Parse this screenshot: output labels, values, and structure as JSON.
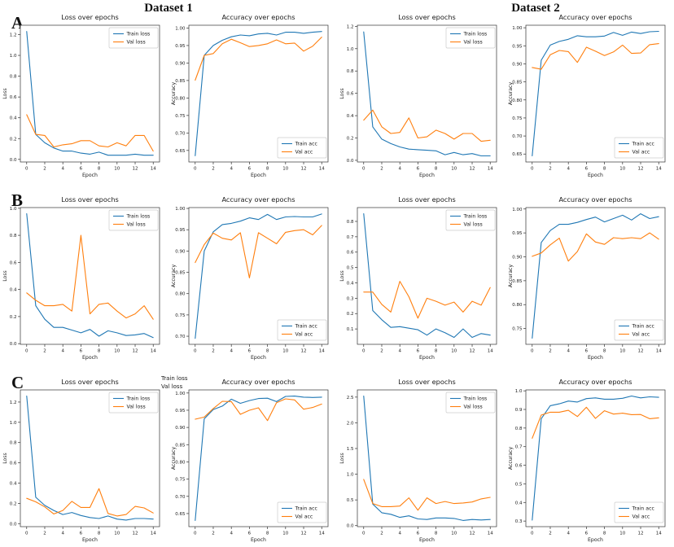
{
  "figure": {
    "col_headers": [
      "Dataset 1",
      "Dataset 2"
    ],
    "row_labels": [
      "A",
      "B",
      "C"
    ],
    "overflow_lines": [
      "Train loss",
      "Val loss"
    ]
  },
  "colors": {
    "train": "#1f77b4",
    "val": "#ff7f0e",
    "spine": "#333333",
    "text": "#1a1a1a",
    "legend_border": "#cccccc"
  },
  "chart_data": [
    {
      "id": "a1",
      "type": "line",
      "panel": "A",
      "dataset": "Dataset 1",
      "title": "Loss over epochs",
      "xlabel": "Epoch",
      "ylabel": "Loss",
      "x": [
        0,
        1,
        2,
        3,
        4,
        5,
        6,
        7,
        8,
        9,
        10,
        11,
        12,
        13,
        14
      ],
      "xticks": [
        0,
        2,
        4,
        6,
        8,
        10,
        12,
        14
      ],
      "xlim": [
        -0.7,
        14.7
      ],
      "yticks": [
        0.0,
        0.2,
        0.4,
        0.6,
        0.8,
        1.0,
        1.2
      ],
      "ytick_decimals": 1,
      "ylim": [
        -0.025,
        1.29
      ],
      "grid": false,
      "legend_loc": "upper right",
      "series": [
        {
          "name": "Train loss",
          "color_key": "train",
          "values": [
            1.23,
            0.24,
            0.16,
            0.11,
            0.08,
            0.08,
            0.06,
            0.05,
            0.07,
            0.04,
            0.04,
            0.04,
            0.05,
            0.04,
            0.04
          ]
        },
        {
          "name": "Val loss",
          "color_key": "val",
          "values": [
            0.43,
            0.24,
            0.23,
            0.12,
            0.14,
            0.15,
            0.18,
            0.18,
            0.13,
            0.12,
            0.16,
            0.13,
            0.23,
            0.23,
            0.08
          ]
        }
      ]
    },
    {
      "id": "a2",
      "type": "line",
      "panel": "A",
      "dataset": "Dataset 1",
      "title": "Accuracy over epochs",
      "xlabel": "Epoch",
      "ylabel": "Accuracy",
      "x": [
        0,
        1,
        2,
        3,
        4,
        5,
        6,
        7,
        8,
        9,
        10,
        11,
        12,
        13,
        14
      ],
      "xticks": [
        0,
        2,
        4,
        6,
        8,
        10,
        12,
        14
      ],
      "xlim": [
        -0.7,
        14.7
      ],
      "yticks": [
        0.65,
        0.7,
        0.75,
        0.8,
        0.85,
        0.9,
        0.95,
        1.0
      ],
      "ytick_decimals": 2,
      "ylim": [
        0.617,
        1.008
      ],
      "grid": false,
      "legend_loc": "lower right",
      "series": [
        {
          "name": "Train acc",
          "color_key": "train",
          "values": [
            0.635,
            0.922,
            0.95,
            0.965,
            0.975,
            0.98,
            0.978,
            0.983,
            0.985,
            0.98,
            0.988,
            0.988,
            0.985,
            0.988,
            0.99
          ]
        },
        {
          "name": "Val acc",
          "color_key": "val",
          "values": [
            0.851,
            0.922,
            0.927,
            0.955,
            0.968,
            0.958,
            0.947,
            0.95,
            0.955,
            0.966,
            0.955,
            0.957,
            0.934,
            0.948,
            0.974
          ]
        }
      ]
    },
    {
      "id": "a3",
      "type": "line",
      "panel": "A",
      "dataset": "Dataset 2",
      "title": "Loss over epochs",
      "xlabel": "Epoch",
      "ylabel": "Loss",
      "x": [
        0,
        1,
        2,
        3,
        4,
        5,
        6,
        7,
        8,
        9,
        10,
        11,
        12,
        13,
        14
      ],
      "xticks": [
        0,
        2,
        4,
        6,
        8,
        10,
        12,
        14
      ],
      "xlim": [
        -0.7,
        14.7
      ],
      "yticks": [
        0.0,
        0.2,
        0.4,
        0.6,
        0.8,
        1.0,
        1.2
      ],
      "ytick_decimals": 1,
      "ylim": [
        -0.015,
        1.21
      ],
      "grid": false,
      "legend_loc": "upper right",
      "series": [
        {
          "name": "Train loss",
          "color_key": "train",
          "values": [
            1.15,
            0.3,
            0.19,
            0.15,
            0.12,
            0.1,
            0.095,
            0.09,
            0.085,
            0.05,
            0.07,
            0.05,
            0.06,
            0.04,
            0.04
          ]
        },
        {
          "name": "Val loss",
          "color_key": "val",
          "values": [
            0.36,
            0.45,
            0.3,
            0.24,
            0.25,
            0.38,
            0.2,
            0.21,
            0.27,
            0.24,
            0.19,
            0.24,
            0.24,
            0.17,
            0.18
          ]
        }
      ]
    },
    {
      "id": "a4",
      "type": "line",
      "panel": "A",
      "dataset": "Dataset 2",
      "title": "Accuracy over epochs",
      "xlabel": "Epoch",
      "ylabel": "Accuracy",
      "x": [
        0,
        1,
        2,
        3,
        4,
        5,
        6,
        7,
        8,
        9,
        10,
        11,
        12,
        13,
        14
      ],
      "xticks": [
        0,
        2,
        4,
        6,
        8,
        10,
        12,
        14
      ],
      "xlim": [
        -0.7,
        14.7
      ],
      "yticks": [
        0.65,
        0.7,
        0.75,
        0.8,
        0.85,
        0.9,
        0.95,
        1.0
      ],
      "ytick_decimals": 2,
      "ylim": [
        0.628,
        1.007
      ],
      "grid": false,
      "legend_loc": "lower right",
      "series": [
        {
          "name": "Train acc",
          "color_key": "train",
          "values": [
            0.645,
            0.91,
            0.952,
            0.962,
            0.968,
            0.978,
            0.975,
            0.975,
            0.977,
            0.987,
            0.979,
            0.988,
            0.984,
            0.989,
            0.99
          ]
        },
        {
          "name": "Val acc",
          "color_key": "val",
          "values": [
            0.89,
            0.885,
            0.925,
            0.937,
            0.934,
            0.904,
            0.946,
            0.935,
            0.923,
            0.933,
            0.952,
            0.929,
            0.93,
            0.953,
            0.956
          ]
        }
      ]
    },
    {
      "id": "b1",
      "type": "line",
      "panel": "B",
      "dataset": "Dataset 1",
      "title": "Loss over epochs",
      "xlabel": "Epoch",
      "ylabel": "Loss",
      "x": [
        0,
        1,
        2,
        3,
        4,
        5,
        6,
        7,
        8,
        9,
        10,
        11,
        12,
        13,
        14
      ],
      "xticks": [
        0,
        2,
        4,
        6,
        8,
        10,
        12,
        14
      ],
      "xlim": [
        -0.7,
        14.7
      ],
      "yticks": [
        0.0,
        0.2,
        0.4,
        0.6,
        0.8,
        1.0
      ],
      "ytick_decimals": 1,
      "ylim": [
        -0.005,
        1.005
      ],
      "grid": false,
      "legend_loc": "upper right",
      "series": [
        {
          "name": "Train loss",
          "color_key": "train",
          "values": [
            0.96,
            0.28,
            0.18,
            0.12,
            0.12,
            0.1,
            0.08,
            0.105,
            0.055,
            0.095,
            0.08,
            0.06,
            0.065,
            0.075,
            0.045
          ]
        },
        {
          "name": "Val loss",
          "color_key": "val",
          "values": [
            0.375,
            0.32,
            0.28,
            0.28,
            0.29,
            0.24,
            0.8,
            0.22,
            0.29,
            0.3,
            0.24,
            0.19,
            0.22,
            0.28,
            0.18
          ]
        }
      ]
    },
    {
      "id": "b2",
      "type": "line",
      "panel": "B",
      "dataset": "Dataset 1",
      "title": "Accuracy over epochs",
      "xlabel": "Epoch",
      "ylabel": "Accuracy",
      "x": [
        0,
        1,
        2,
        3,
        4,
        5,
        6,
        7,
        8,
        9,
        10,
        11,
        12,
        13,
        14
      ],
      "xticks": [
        0,
        2,
        4,
        6,
        8,
        10,
        12,
        14
      ],
      "xlim": [
        -0.7,
        14.7
      ],
      "yticks": [
        0.7,
        0.75,
        0.8,
        0.85,
        0.9,
        0.95,
        1.0
      ],
      "ytick_decimals": 2,
      "ylim": [
        0.681,
        1.002
      ],
      "grid": false,
      "legend_loc": "lower right",
      "series": [
        {
          "name": "Train acc",
          "color_key": "train",
          "values": [
            0.695,
            0.9,
            0.945,
            0.962,
            0.965,
            0.97,
            0.978,
            0.974,
            0.986,
            0.974,
            0.98,
            0.981,
            0.98,
            0.98,
            0.987
          ]
        },
        {
          "name": "Val acc",
          "color_key": "val",
          "values": [
            0.873,
            0.915,
            0.942,
            0.93,
            0.926,
            0.943,
            0.837,
            0.943,
            0.93,
            0.917,
            0.944,
            0.948,
            0.95,
            0.938,
            0.96
          ]
        }
      ]
    },
    {
      "id": "b3",
      "type": "line",
      "panel": "B",
      "dataset": "Dataset 2",
      "title": "Loss over epochs",
      "xlabel": "Epoch",
      "ylabel": "Loss",
      "x": [
        0,
        1,
        2,
        3,
        4,
        5,
        6,
        7,
        8,
        9,
        10,
        11,
        12,
        13,
        14
      ],
      "xticks": [
        0,
        2,
        4,
        6,
        8,
        10,
        12,
        14
      ],
      "xlim": [
        -0.7,
        14.7
      ],
      "yticks": [
        0.1,
        0.2,
        0.3,
        0.4,
        0.5,
        0.6,
        0.7,
        0.8
      ],
      "ytick_decimals": 1,
      "ylim": [
        0.0,
        0.89
      ],
      "grid": false,
      "legend_loc": "upper right",
      "series": [
        {
          "name": "Train loss",
          "color_key": "train",
          "values": [
            0.85,
            0.22,
            0.16,
            0.11,
            0.115,
            0.105,
            0.095,
            0.06,
            0.1,
            0.075,
            0.045,
            0.1,
            0.045,
            0.07,
            0.06
          ]
        },
        {
          "name": "Val loss",
          "color_key": "val",
          "values": [
            0.34,
            0.34,
            0.26,
            0.21,
            0.41,
            0.31,
            0.17,
            0.3,
            0.28,
            0.255,
            0.275,
            0.21,
            0.28,
            0.255,
            0.37
          ]
        }
      ]
    },
    {
      "id": "b4",
      "type": "line",
      "panel": "B",
      "dataset": "Dataset 2",
      "title": "Accuracy over epochs",
      "xlabel": "Epoch",
      "ylabel": "Accuracy",
      "x": [
        0,
        1,
        2,
        3,
        4,
        5,
        6,
        7,
        8,
        9,
        10,
        11,
        12,
        13,
        14
      ],
      "xticks": [
        0,
        2,
        4,
        6,
        8,
        10,
        12,
        14
      ],
      "xlim": [
        -0.7,
        14.7
      ],
      "yticks": [
        0.75,
        0.8,
        0.85,
        0.9,
        0.95,
        1.0
      ],
      "ytick_decimals": 2,
      "ylim": [
        0.717,
        1.003
      ],
      "grid": false,
      "legend_loc": "lower right",
      "series": [
        {
          "name": "Train acc",
          "color_key": "train",
          "values": [
            0.73,
            0.93,
            0.955,
            0.968,
            0.968,
            0.972,
            0.978,
            0.983,
            0.973,
            0.98,
            0.987,
            0.977,
            0.99,
            0.98,
            0.984
          ]
        },
        {
          "name": "Val acc",
          "color_key": "val",
          "values": [
            0.901,
            0.908,
            0.925,
            0.939,
            0.891,
            0.911,
            0.948,
            0.931,
            0.926,
            0.94,
            0.938,
            0.94,
            0.938,
            0.95,
            0.937
          ]
        }
      ]
    },
    {
      "id": "c1",
      "type": "line",
      "panel": "C",
      "dataset": "Dataset 1",
      "title": "Loss over epochs",
      "xlabel": "Epoch",
      "ylabel": "Loss",
      "x": [
        0,
        1,
        2,
        3,
        4,
        5,
        6,
        7,
        8,
        9,
        10,
        11,
        12,
        13,
        14
      ],
      "xticks": [
        0,
        2,
        4,
        6,
        8,
        10,
        12,
        14
      ],
      "xlim": [
        -0.7,
        14.7
      ],
      "yticks": [
        0.0,
        0.2,
        0.4,
        0.6,
        0.8,
        1.0,
        1.2
      ],
      "ytick_decimals": 1,
      "ylim": [
        -0.03,
        1.32
      ],
      "grid": false,
      "legend_loc": "upper right",
      "series": [
        {
          "name": "Train loss",
          "color_key": "train",
          "values": [
            1.26,
            0.26,
            0.18,
            0.13,
            0.09,
            0.11,
            0.08,
            0.06,
            0.05,
            0.075,
            0.045,
            0.035,
            0.05,
            0.05,
            0.045
          ]
        },
        {
          "name": "Val loss",
          "color_key": "val",
          "values": [
            0.25,
            0.215,
            0.165,
            0.095,
            0.13,
            0.22,
            0.16,
            0.16,
            0.345,
            0.1,
            0.075,
            0.09,
            0.17,
            0.155,
            0.105
          ]
        }
      ]
    },
    {
      "id": "c2",
      "type": "line",
      "panel": "C",
      "dataset": "Dataset 1",
      "title": "Accuracy over epochs",
      "xlabel": "Epoch",
      "ylabel": "Accuracy",
      "x": [
        0,
        1,
        2,
        3,
        4,
        5,
        6,
        7,
        8,
        9,
        10,
        11,
        12,
        13,
        14
      ],
      "xticks": [
        0,
        2,
        4,
        6,
        8,
        10,
        12,
        14
      ],
      "xlim": [
        -0.7,
        14.7
      ],
      "yticks": [
        0.65,
        0.7,
        0.75,
        0.8,
        0.85,
        0.9,
        0.95,
        1.0
      ],
      "ytick_decimals": 2,
      "ylim": [
        0.612,
        1.009
      ],
      "grid": false,
      "legend_loc": "lower right",
      "series": [
        {
          "name": "Train acc",
          "color_key": "train",
          "values": [
            0.63,
            0.925,
            0.952,
            0.962,
            0.982,
            0.97,
            0.978,
            0.984,
            0.985,
            0.975,
            0.99,
            0.991,
            0.988,
            0.987,
            0.988
          ]
        },
        {
          "name": "Val acc",
          "color_key": "val",
          "values": [
            0.924,
            0.93,
            0.955,
            0.976,
            0.975,
            0.938,
            0.95,
            0.957,
            0.92,
            0.972,
            0.983,
            0.98,
            0.953,
            0.958,
            0.968
          ]
        }
      ]
    },
    {
      "id": "c3",
      "type": "line",
      "panel": "C",
      "dataset": "Dataset 2",
      "title": "Loss over epochs",
      "xlabel": "Epoch",
      "ylabel": "Loss",
      "x": [
        0,
        1,
        2,
        3,
        4,
        5,
        6,
        7,
        8,
        9,
        10,
        11,
        12,
        13,
        14
      ],
      "xticks": [
        0,
        2,
        4,
        6,
        8,
        10,
        12,
        14
      ],
      "xlim": [
        -0.7,
        14.7
      ],
      "yticks": [
        0.0,
        0.5,
        1.0,
        1.5,
        2.0,
        2.5
      ],
      "ytick_decimals": 1,
      "ylim": [
        -0.02,
        2.64
      ],
      "grid": false,
      "legend_loc": "upper right",
      "series": [
        {
          "name": "Train loss",
          "color_key": "train",
          "values": [
            2.52,
            0.42,
            0.25,
            0.22,
            0.16,
            0.19,
            0.13,
            0.12,
            0.15,
            0.15,
            0.14,
            0.1,
            0.12,
            0.11,
            0.12
          ]
        },
        {
          "name": "Val loss",
          "color_key": "val",
          "values": [
            0.9,
            0.43,
            0.37,
            0.37,
            0.38,
            0.54,
            0.3,
            0.54,
            0.43,
            0.47,
            0.43,
            0.44,
            0.46,
            0.52,
            0.55
          ]
        }
      ]
    },
    {
      "id": "c4",
      "type": "line",
      "panel": "C",
      "dataset": "Dataset 2",
      "title": "Accuracy over epochs",
      "xlabel": "Epoch",
      "ylabel": "Accuracy",
      "x": [
        0,
        1,
        2,
        3,
        4,
        5,
        6,
        7,
        8,
        9,
        10,
        11,
        12,
        13,
        14
      ],
      "xticks": [
        0,
        2,
        4,
        6,
        8,
        10,
        12,
        14
      ],
      "xlim": [
        -0.7,
        14.7
      ],
      "yticks": [
        0.3,
        0.4,
        0.5,
        0.6,
        0.7,
        0.8,
        0.9,
        1.0
      ],
      "ytick_decimals": 1,
      "ylim": [
        0.27,
        1.005
      ],
      "grid": false,
      "legend_loc": "lower right",
      "series": [
        {
          "name": "Train acc",
          "color_key": "train",
          "values": [
            0.305,
            0.85,
            0.92,
            0.93,
            0.945,
            0.94,
            0.958,
            0.962,
            0.955,
            0.955,
            0.96,
            0.972,
            0.962,
            0.968,
            0.965
          ]
        },
        {
          "name": "Val acc",
          "color_key": "val",
          "values": [
            0.745,
            0.87,
            0.885,
            0.885,
            0.895,
            0.862,
            0.912,
            0.852,
            0.893,
            0.875,
            0.88,
            0.872,
            0.873,
            0.85,
            0.855
          ]
        }
      ]
    }
  ]
}
